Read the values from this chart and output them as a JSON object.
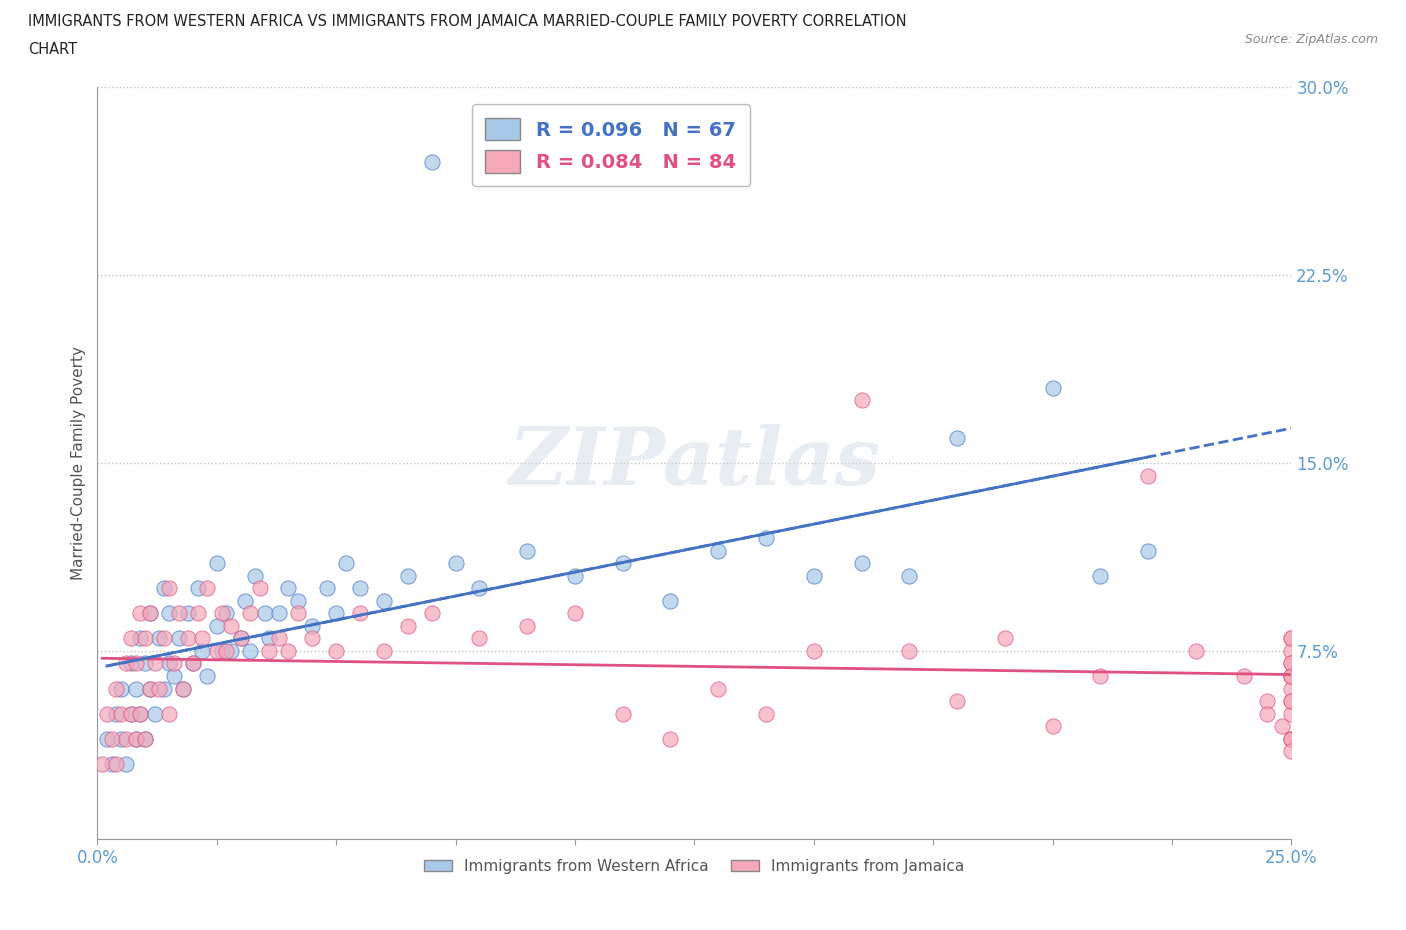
{
  "title_line1": "IMMIGRANTS FROM WESTERN AFRICA VS IMMIGRANTS FROM JAMAICA MARRIED-COUPLE FAMILY POVERTY CORRELATION",
  "title_line2": "CHART",
  "source": "Source: ZipAtlas.com",
  "ylabel": "Married-Couple Family Poverty",
  "xlim": [
    0.0,
    0.25
  ],
  "ylim": [
    0.0,
    0.3
  ],
  "xticks": [
    0.0,
    0.025,
    0.05,
    0.075,
    0.1,
    0.125,
    0.15,
    0.175,
    0.2,
    0.225,
    0.25
  ],
  "xtick_labels": [
    "0.0%",
    "",
    "",
    "",
    "",
    "",
    "",
    "",
    "",
    "",
    "25.0%"
  ],
  "yticks": [
    0.0,
    0.075,
    0.15,
    0.225,
    0.3
  ],
  "ytick_labels": [
    "",
    "7.5%",
    "15.0%",
    "22.5%",
    "30.0%"
  ],
  "blue_color": "#a8c8e8",
  "pink_color": "#f4a8b8",
  "blue_line_color": "#4472c4",
  "pink_line_color": "#e05080",
  "blue_r": 0.096,
  "blue_n": 67,
  "pink_r": 0.084,
  "pink_n": 84,
  "watermark": "ZIPatlas",
  "legend_label_blue": "Immigrants from Western Africa",
  "legend_label_pink": "Immigrants from Jamaica",
  "blue_x": [
    0.002,
    0.003,
    0.004,
    0.005,
    0.005,
    0.006,
    0.007,
    0.007,
    0.008,
    0.008,
    0.009,
    0.009,
    0.01,
    0.01,
    0.011,
    0.011,
    0.012,
    0.013,
    0.014,
    0.014,
    0.015,
    0.015,
    0.016,
    0.017,
    0.018,
    0.019,
    0.02,
    0.021,
    0.022,
    0.023,
    0.025,
    0.025,
    0.026,
    0.027,
    0.028,
    0.03,
    0.031,
    0.032,
    0.033,
    0.035,
    0.036,
    0.038,
    0.04,
    0.042,
    0.045,
    0.048,
    0.05,
    0.052,
    0.055,
    0.06,
    0.065,
    0.07,
    0.075,
    0.08,
    0.09,
    0.1,
    0.11,
    0.12,
    0.13,
    0.14,
    0.15,
    0.16,
    0.17,
    0.18,
    0.2,
    0.21,
    0.22
  ],
  "blue_y": [
    0.04,
    0.03,
    0.05,
    0.04,
    0.06,
    0.03,
    0.05,
    0.07,
    0.04,
    0.06,
    0.05,
    0.08,
    0.04,
    0.07,
    0.06,
    0.09,
    0.05,
    0.08,
    0.06,
    0.1,
    0.07,
    0.09,
    0.065,
    0.08,
    0.06,
    0.09,
    0.07,
    0.1,
    0.075,
    0.065,
    0.085,
    0.11,
    0.075,
    0.09,
    0.075,
    0.08,
    0.095,
    0.075,
    0.105,
    0.09,
    0.08,
    0.09,
    0.1,
    0.095,
    0.085,
    0.1,
    0.09,
    0.11,
    0.1,
    0.095,
    0.105,
    0.27,
    0.11,
    0.1,
    0.115,
    0.105,
    0.11,
    0.095,
    0.115,
    0.12,
    0.105,
    0.11,
    0.105,
    0.16,
    0.18,
    0.105,
    0.115
  ],
  "pink_x": [
    0.001,
    0.002,
    0.003,
    0.004,
    0.004,
    0.005,
    0.006,
    0.006,
    0.007,
    0.007,
    0.008,
    0.008,
    0.009,
    0.009,
    0.01,
    0.01,
    0.011,
    0.011,
    0.012,
    0.013,
    0.014,
    0.015,
    0.015,
    0.016,
    0.017,
    0.018,
    0.019,
    0.02,
    0.021,
    0.022,
    0.023,
    0.025,
    0.026,
    0.027,
    0.028,
    0.03,
    0.032,
    0.034,
    0.036,
    0.038,
    0.04,
    0.042,
    0.045,
    0.05,
    0.055,
    0.06,
    0.065,
    0.07,
    0.08,
    0.09,
    0.1,
    0.11,
    0.12,
    0.13,
    0.14,
    0.15,
    0.16,
    0.17,
    0.18,
    0.19,
    0.2,
    0.21,
    0.22,
    0.23,
    0.24,
    0.245,
    0.245,
    0.248,
    0.25,
    0.25,
    0.25,
    0.25,
    0.25,
    0.25,
    0.25,
    0.25,
    0.25,
    0.25,
    0.25,
    0.25,
    0.25,
    0.25,
    0.25,
    0.25
  ],
  "pink_y": [
    0.03,
    0.05,
    0.04,
    0.06,
    0.03,
    0.05,
    0.04,
    0.07,
    0.05,
    0.08,
    0.04,
    0.07,
    0.05,
    0.09,
    0.04,
    0.08,
    0.06,
    0.09,
    0.07,
    0.06,
    0.08,
    0.05,
    0.1,
    0.07,
    0.09,
    0.06,
    0.08,
    0.07,
    0.09,
    0.08,
    0.1,
    0.075,
    0.09,
    0.075,
    0.085,
    0.08,
    0.09,
    0.1,
    0.075,
    0.08,
    0.075,
    0.09,
    0.08,
    0.075,
    0.09,
    0.075,
    0.085,
    0.09,
    0.08,
    0.085,
    0.09,
    0.05,
    0.04,
    0.06,
    0.05,
    0.075,
    0.175,
    0.075,
    0.055,
    0.08,
    0.045,
    0.065,
    0.145,
    0.075,
    0.065,
    0.055,
    0.05,
    0.045,
    0.08,
    0.065,
    0.075,
    0.04,
    0.06,
    0.05,
    0.07,
    0.04,
    0.065,
    0.055,
    0.08,
    0.04,
    0.07,
    0.055,
    0.065,
    0.035
  ]
}
